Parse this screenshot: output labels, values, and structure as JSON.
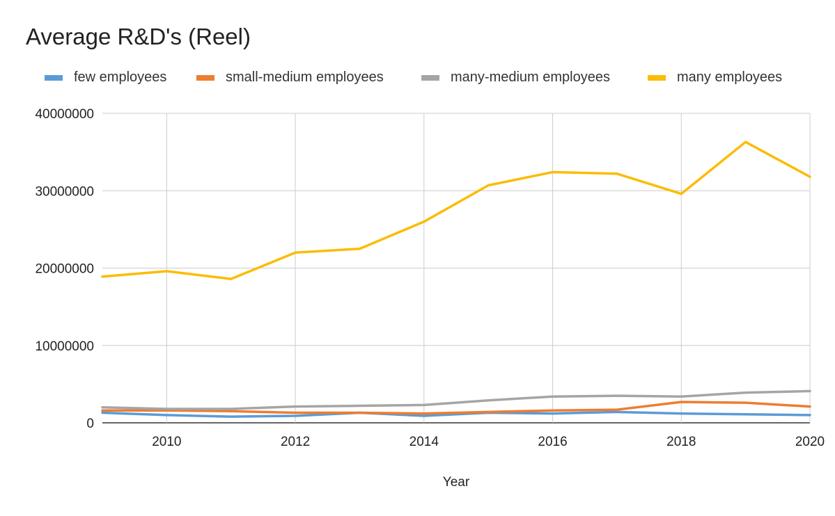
{
  "chart_data": {
    "type": "line",
    "title": "Average R&D's (Reel)",
    "xlabel": "Year",
    "ylabel": "",
    "xlim": [
      2009,
      2020
    ],
    "ylim": [
      0,
      40000000
    ],
    "x": [
      2009,
      2010,
      2011,
      2012,
      2013,
      2014,
      2015,
      2016,
      2017,
      2018,
      2019,
      2020
    ],
    "x_ticks": [
      2010,
      2012,
      2014,
      2016,
      2018,
      2020
    ],
    "y_ticks": [
      0,
      10000000,
      20000000,
      30000000,
      40000000
    ],
    "grid": true,
    "legend_position": "top-left",
    "series": [
      {
        "name": "few employees",
        "color": "#5b9bd5",
        "values": [
          1300000,
          1000000,
          800000,
          900000,
          1300000,
          900000,
          1300000,
          1200000,
          1400000,
          1200000,
          1100000,
          1000000
        ]
      },
      {
        "name": "small-medium employees",
        "color": "#ed7d31",
        "values": [
          1600000,
          1600000,
          1500000,
          1300000,
          1300000,
          1200000,
          1400000,
          1600000,
          1700000,
          2700000,
          2600000,
          2100000
        ]
      },
      {
        "name": "many-medium employees",
        "color": "#a5a5a5",
        "values": [
          2000000,
          1800000,
          1800000,
          2100000,
          2200000,
          2300000,
          2900000,
          3400000,
          3500000,
          3400000,
          3900000,
          4100000
        ]
      },
      {
        "name": "many employees",
        "color": "#fbbc04",
        "values": [
          18900000,
          19600000,
          18600000,
          22000000,
          22500000,
          26000000,
          30700000,
          32400000,
          32200000,
          29600000,
          36300000,
          31800000
        ]
      }
    ]
  }
}
